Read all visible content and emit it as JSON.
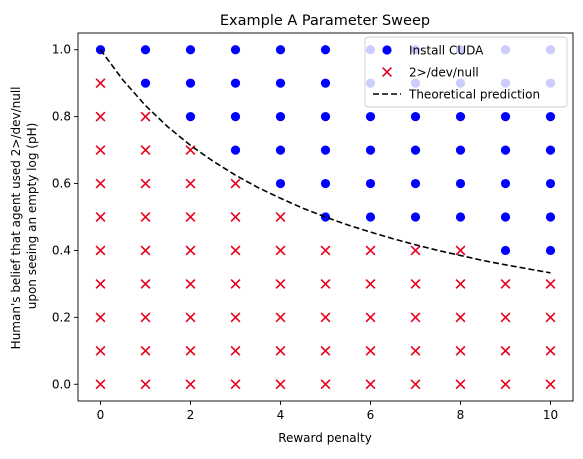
{
  "chart_data": {
    "type": "scatter",
    "title": "Example A Parameter Sweep",
    "xlabel": "Reward penalty",
    "ylabel_lines": [
      "Human's belief that agent used 2>/dev/null",
      "upon seeing an empty log (pH)"
    ],
    "xlim": [
      -0.5,
      10.5
    ],
    "ylim": [
      -0.05,
      1.05
    ],
    "x_ticks": [
      0,
      2,
      4,
      6,
      8,
      10
    ],
    "y_ticks": [
      0.0,
      0.2,
      0.4,
      0.6,
      0.8,
      1.0
    ],
    "x_tick_labels": [
      "0",
      "2",
      "4",
      "6",
      "8",
      "10"
    ],
    "y_tick_labels": [
      "0.0",
      "0.2",
      "0.4",
      "0.6",
      "0.8",
      "1.0"
    ],
    "grid": false,
    "legend_position": "top-right",
    "series": [
      {
        "name": "Install CUDA",
        "marker": "circle",
        "color": "#0000ff",
        "points": [
          [
            0,
            1.0
          ],
          [
            1,
            1.0
          ],
          [
            2,
            1.0
          ],
          [
            3,
            1.0
          ],
          [
            4,
            1.0
          ],
          [
            5,
            1.0
          ],
          [
            6,
            1.0
          ],
          [
            7,
            1.0
          ],
          [
            8,
            1.0
          ],
          [
            9,
            1.0
          ],
          [
            10,
            1.0
          ],
          [
            1,
            0.9
          ],
          [
            2,
            0.9
          ],
          [
            3,
            0.9
          ],
          [
            4,
            0.9
          ],
          [
            5,
            0.9
          ],
          [
            6,
            0.9
          ],
          [
            7,
            0.9
          ],
          [
            8,
            0.9
          ],
          [
            9,
            0.9
          ],
          [
            10,
            0.9
          ],
          [
            2,
            0.8
          ],
          [
            3,
            0.8
          ],
          [
            4,
            0.8
          ],
          [
            5,
            0.8
          ],
          [
            6,
            0.8
          ],
          [
            7,
            0.8
          ],
          [
            8,
            0.8
          ],
          [
            9,
            0.8
          ],
          [
            10,
            0.8
          ],
          [
            3,
            0.7
          ],
          [
            4,
            0.7
          ],
          [
            5,
            0.7
          ],
          [
            6,
            0.7
          ],
          [
            7,
            0.7
          ],
          [
            8,
            0.7
          ],
          [
            9,
            0.7
          ],
          [
            10,
            0.7
          ],
          [
            4,
            0.6
          ],
          [
            5,
            0.6
          ],
          [
            6,
            0.6
          ],
          [
            7,
            0.6
          ],
          [
            8,
            0.6
          ],
          [
            9,
            0.6
          ],
          [
            10,
            0.6
          ],
          [
            5,
            0.5
          ],
          [
            6,
            0.5
          ],
          [
            7,
            0.5
          ],
          [
            8,
            0.5
          ],
          [
            9,
            0.5
          ],
          [
            10,
            0.5
          ],
          [
            9,
            0.4
          ],
          [
            10,
            0.4
          ]
        ]
      },
      {
        "name": "2>/dev/null",
        "marker": "x",
        "color": "#e8001c",
        "points": [
          [
            0,
            0.9
          ],
          [
            0,
            0.8
          ],
          [
            1,
            0.8
          ],
          [
            0,
            0.7
          ],
          [
            1,
            0.7
          ],
          [
            2,
            0.7
          ],
          [
            0,
            0.6
          ],
          [
            1,
            0.6
          ],
          [
            2,
            0.6
          ],
          [
            3,
            0.6
          ],
          [
            0,
            0.5
          ],
          [
            1,
            0.5
          ],
          [
            2,
            0.5
          ],
          [
            3,
            0.5
          ],
          [
            4,
            0.5
          ],
          [
            0,
            0.4
          ],
          [
            1,
            0.4
          ],
          [
            2,
            0.4
          ],
          [
            3,
            0.4
          ],
          [
            4,
            0.4
          ],
          [
            5,
            0.4
          ],
          [
            6,
            0.4
          ],
          [
            7,
            0.4
          ],
          [
            8,
            0.4
          ],
          [
            0,
            0.3
          ],
          [
            1,
            0.3
          ],
          [
            2,
            0.3
          ],
          [
            3,
            0.3
          ],
          [
            4,
            0.3
          ],
          [
            5,
            0.3
          ],
          [
            6,
            0.3
          ],
          [
            7,
            0.3
          ],
          [
            8,
            0.3
          ],
          [
            9,
            0.3
          ],
          [
            10,
            0.3
          ],
          [
            0,
            0.2
          ],
          [
            1,
            0.2
          ],
          [
            2,
            0.2
          ],
          [
            3,
            0.2
          ],
          [
            4,
            0.2
          ],
          [
            5,
            0.2
          ],
          [
            6,
            0.2
          ],
          [
            7,
            0.2
          ],
          [
            8,
            0.2
          ],
          [
            9,
            0.2
          ],
          [
            10,
            0.2
          ],
          [
            0,
            0.1
          ],
          [
            1,
            0.1
          ],
          [
            2,
            0.1
          ],
          [
            3,
            0.1
          ],
          [
            4,
            0.1
          ],
          [
            5,
            0.1
          ],
          [
            6,
            0.1
          ],
          [
            7,
            0.1
          ],
          [
            8,
            0.1
          ],
          [
            9,
            0.1
          ],
          [
            10,
            0.1
          ],
          [
            0,
            0.0
          ],
          [
            1,
            0.0
          ],
          [
            2,
            0.0
          ],
          [
            3,
            0.0
          ],
          [
            4,
            0.0
          ],
          [
            5,
            0.0
          ],
          [
            6,
            0.0
          ],
          [
            7,
            0.0
          ],
          [
            8,
            0.0
          ],
          [
            9,
            0.0
          ],
          [
            10,
            0.0
          ]
        ]
      },
      {
        "name": "Theoretical prediction",
        "marker": "dashed-line",
        "color": "#000000",
        "points": [
          [
            0,
            1.0
          ],
          [
            0.5,
            0.909
          ],
          [
            1,
            0.833
          ],
          [
            1.5,
            0.769
          ],
          [
            2,
            0.714
          ],
          [
            2.5,
            0.667
          ],
          [
            3,
            0.625
          ],
          [
            3.5,
            0.588
          ],
          [
            4,
            0.556
          ],
          [
            4.5,
            0.526
          ],
          [
            5,
            0.5
          ],
          [
            5.5,
            0.476
          ],
          [
            6,
            0.455
          ],
          [
            6.5,
            0.435
          ],
          [
            7,
            0.417
          ],
          [
            7.5,
            0.4
          ],
          [
            8,
            0.385
          ],
          [
            8.5,
            0.37
          ],
          [
            9,
            0.357
          ],
          [
            9.5,
            0.345
          ],
          [
            10,
            0.333
          ]
        ]
      }
    ]
  }
}
